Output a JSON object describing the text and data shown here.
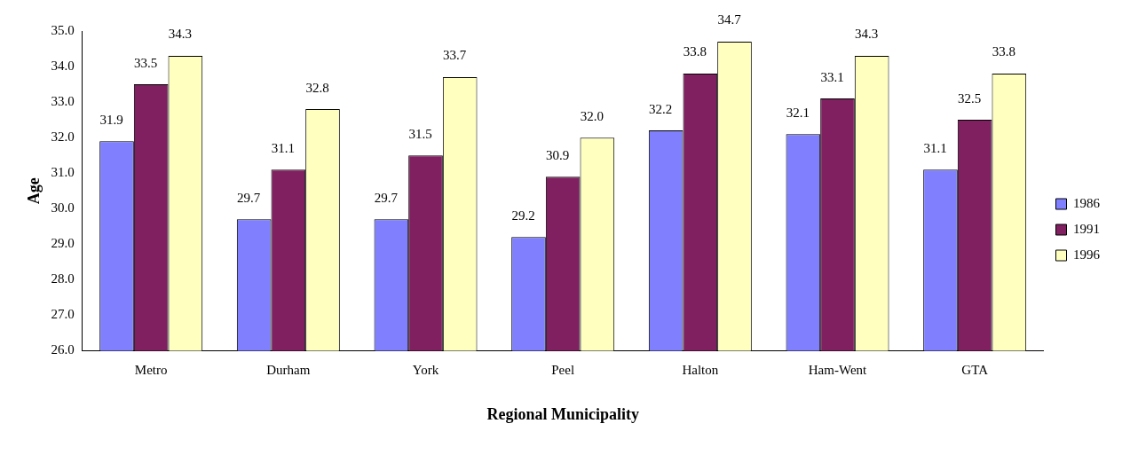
{
  "chart_data": {
    "type": "bar",
    "xlabel": "Regional Municipality",
    "ylabel": "Age",
    "categories": [
      "Metro",
      "Durham",
      "York",
      "Peel",
      "Halton",
      "Ham-Went",
      "GTA"
    ],
    "series": [
      {
        "name": "1986",
        "color": "#8080ff",
        "values": [
          31.9,
          29.7,
          29.7,
          29.2,
          32.2,
          32.1,
          31.1
        ],
        "value_labels": [
          "31.9",
          "29.7",
          "29.7",
          "29.2",
          "32.2",
          "32.1",
          "31.1"
        ]
      },
      {
        "name": "1991",
        "color": "#802060",
        "values": [
          33.5,
          31.1,
          31.5,
          30.9,
          33.8,
          33.1,
          32.5
        ],
        "value_labels": [
          "33.5",
          "31.1",
          "31.5",
          "30.9",
          "33.8",
          "33.1",
          "32.5"
        ]
      },
      {
        "name": "1996",
        "color": "#ffffc0",
        "values": [
          34.3,
          32.8,
          33.7,
          32.0,
          34.7,
          34.3,
          33.8
        ],
        "value_labels": [
          "34.3",
          "32.8",
          "33.7",
          "32.0",
          "34.7",
          "34.3",
          "33.8"
        ]
      }
    ],
    "ylim": [
      26,
      35
    ],
    "yticks": [
      {
        "value": 26,
        "label": "26.0"
      },
      {
        "value": 27,
        "label": "27.0"
      },
      {
        "value": 28,
        "label": "28.0"
      },
      {
        "value": 29,
        "label": "29.0"
      },
      {
        "value": 30,
        "label": "30.0"
      },
      {
        "value": 31,
        "label": "31.0"
      },
      {
        "value": 32,
        "label": "32.0"
      },
      {
        "value": 33,
        "label": "33.0"
      },
      {
        "value": 34,
        "label": "34.0"
      },
      {
        "value": 35,
        "label": "35.0"
      }
    ],
    "grid": false,
    "legend": "right"
  }
}
